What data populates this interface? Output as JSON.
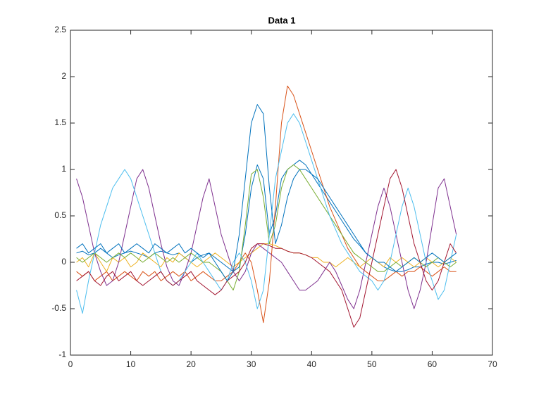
{
  "chart_data": {
    "type": "line",
    "title": "Data 1",
    "x": [
      1,
      2,
      3,
      4,
      5,
      6,
      7,
      8,
      9,
      10,
      11,
      12,
      13,
      14,
      15,
      16,
      17,
      18,
      19,
      20,
      21,
      22,
      23,
      24,
      25,
      26,
      27,
      28,
      29,
      30,
      31,
      32,
      33,
      34,
      35,
      36,
      37,
      38,
      39,
      40,
      41,
      42,
      43,
      44,
      45,
      46,
      47,
      48,
      49,
      50,
      51,
      52,
      53,
      54,
      55,
      56,
      57,
      58,
      59,
      60,
      61,
      62,
      63,
      64
    ],
    "xlim": [
      0,
      70
    ],
    "xticks": [
      0,
      10,
      20,
      30,
      40,
      50,
      60,
      70
    ],
    "ylim": [
      -1,
      2.5
    ],
    "yticks": [
      -1,
      -0.5,
      0,
      0.5,
      1,
      1.5,
      2,
      2.5
    ],
    "box": true,
    "series": [
      {
        "color": "#0072BD",
        "values": [
          0.1,
          0.12,
          0.08,
          0.1,
          0.15,
          0.1,
          0.05,
          0.08,
          0.1,
          0.12,
          0.1,
          0.08,
          0.05,
          0.1,
          0.12,
          0.1,
          0.08,
          0.1,
          0.05,
          0.0,
          0.05,
          0.08,
          0.1,
          0.05,
          0.0,
          -0.05,
          -0.1,
          -0.05,
          0.3,
          0.8,
          1.05,
          0.9,
          0.3,
          0.5,
          0.9,
          1.0,
          1.05,
          1.1,
          1.05,
          0.95,
          0.85,
          0.75,
          0.65,
          0.55,
          0.45,
          0.35,
          0.25,
          0.18,
          0.1,
          0.05,
          0.0,
          -0.05,
          -0.08,
          -0.1,
          -0.1,
          -0.08,
          -0.05,
          -0.05,
          -0.02,
          0.0,
          0.0,
          -0.02,
          0.0,
          0.02
        ]
      },
      {
        "color": "#D95319",
        "values": [
          -0.1,
          -0.15,
          -0.1,
          -0.2,
          -0.15,
          -0.1,
          -0.2,
          -0.15,
          -0.1,
          -0.15,
          -0.2,
          -0.1,
          -0.15,
          -0.1,
          -0.2,
          -0.15,
          -0.1,
          -0.15,
          -0.1,
          -0.2,
          -0.15,
          -0.1,
          -0.15,
          -0.2,
          -0.2,
          -0.15,
          -0.1,
          0.0,
          0.1,
          0.0,
          -0.3,
          -0.65,
          -0.2,
          0.6,
          1.5,
          1.9,
          1.8,
          1.6,
          1.4,
          1.2,
          1.0,
          0.8,
          0.6,
          0.45,
          0.3,
          0.15,
          0.05,
          -0.05,
          -0.1,
          -0.15,
          -0.2,
          -0.2,
          -0.15,
          -0.1,
          -0.15,
          -0.1,
          -0.1,
          -0.05,
          -0.1,
          -0.15,
          -0.1,
          -0.05,
          -0.1,
          -0.1
        ]
      },
      {
        "color": "#EDB120",
        "values": [
          0.0,
          0.05,
          -0.05,
          0.1,
          0.0,
          -0.1,
          0.05,
          0.0,
          0.05,
          -0.05,
          0.0,
          0.1,
          0.05,
          0.0,
          -0.05,
          0.05,
          0.0,
          0.1,
          0.05,
          0.0,
          -0.05,
          0.0,
          0.05,
          0.1,
          0.05,
          0.0,
          -0.05,
          0.0,
          0.05,
          0.1,
          0.15,
          0.2,
          0.2,
          0.18,
          0.15,
          0.12,
          0.1,
          0.1,
          0.08,
          0.05,
          0.05,
          0.0,
          0.0,
          -0.05,
          0.0,
          0.05,
          0.0,
          -0.05,
          0.0,
          0.05,
          0.0,
          -0.05,
          0.05,
          0.0,
          0.05,
          0.0,
          -0.05,
          0.0,
          0.05,
          0.0,
          -0.05,
          0.0,
          0.05,
          0.0
        ]
      },
      {
        "color": "#7E2F8E",
        "values": [
          0.9,
          0.7,
          0.4,
          0.1,
          -0.1,
          -0.25,
          -0.2,
          0.0,
          0.3,
          0.6,
          0.9,
          1.0,
          0.8,
          0.5,
          0.2,
          -0.05,
          -0.2,
          -0.25,
          -0.1,
          0.1,
          0.4,
          0.7,
          0.9,
          0.6,
          0.3,
          0.1,
          -0.1,
          -0.2,
          -0.1,
          0.1,
          0.2,
          0.15,
          0.1,
          0.05,
          0.0,
          -0.1,
          -0.2,
          -0.3,
          -0.3,
          -0.25,
          -0.2,
          -0.1,
          0.0,
          -0.1,
          -0.25,
          -0.4,
          -0.5,
          -0.3,
          0.0,
          0.3,
          0.6,
          0.8,
          0.6,
          0.3,
          0.0,
          -0.3,
          -0.5,
          -0.3,
          0.0,
          0.4,
          0.8,
          0.9,
          0.6,
          0.3
        ]
      },
      {
        "color": "#77AC30",
        "values": [
          0.05,
          0.0,
          0.05,
          0.1,
          0.05,
          0.0,
          0.05,
          0.1,
          0.05,
          0.1,
          0.05,
          0.0,
          0.05,
          0.1,
          0.05,
          0.0,
          0.05,
          0.0,
          0.05,
          0.1,
          0.05,
          0.0,
          0.0,
          -0.05,
          -0.1,
          -0.2,
          -0.3,
          -0.1,
          0.4,
          0.95,
          1.0,
          0.7,
          0.2,
          0.4,
          0.8,
          1.0,
          1.05,
          1.0,
          0.9,
          0.8,
          0.7,
          0.6,
          0.5,
          0.4,
          0.3,
          0.2,
          0.1,
          0.05,
          0.0,
          -0.05,
          -0.1,
          -0.1,
          -0.05,
          0.0,
          -0.05,
          0.0,
          0.05,
          0.0,
          -0.05,
          0.0,
          0.05,
          0.0,
          -0.05,
          0.0
        ]
      },
      {
        "color": "#4DBEEE",
        "values": [
          -0.3,
          -0.55,
          -0.2,
          0.1,
          0.4,
          0.6,
          0.8,
          0.9,
          1.0,
          0.9,
          0.7,
          0.5,
          0.3,
          0.1,
          -0.1,
          -0.2,
          -0.25,
          -0.2,
          -0.1,
          0.0,
          0.1,
          0.0,
          -0.1,
          -0.2,
          -0.3,
          -0.2,
          0.0,
          0.1,
          0.0,
          -0.2,
          -0.5,
          -0.3,
          0.3,
          0.9,
          1.2,
          1.5,
          1.6,
          1.5,
          1.3,
          1.1,
          0.9,
          0.7,
          0.5,
          0.35,
          0.2,
          0.1,
          0.0,
          -0.1,
          -0.15,
          -0.2,
          -0.3,
          -0.2,
          0.0,
          0.3,
          0.6,
          0.8,
          0.6,
          0.3,
          0.0,
          -0.2,
          -0.4,
          -0.3,
          0.0,
          0.3
        ]
      },
      {
        "color": "#A2142F",
        "values": [
          -0.2,
          -0.15,
          -0.1,
          -0.2,
          -0.25,
          -0.15,
          -0.1,
          -0.2,
          -0.15,
          -0.1,
          -0.2,
          -0.25,
          -0.2,
          -0.15,
          -0.1,
          -0.2,
          -0.25,
          -0.2,
          -0.15,
          -0.1,
          -0.2,
          -0.25,
          -0.3,
          -0.35,
          -0.3,
          -0.2,
          -0.15,
          -0.1,
          0.0,
          0.15,
          0.2,
          0.2,
          0.18,
          0.15,
          0.15,
          0.12,
          0.1,
          0.1,
          0.08,
          0.05,
          0.0,
          -0.05,
          -0.1,
          -0.2,
          -0.3,
          -0.5,
          -0.7,
          -0.6,
          -0.3,
          0.0,
          0.3,
          0.6,
          0.9,
          1.0,
          0.8,
          0.5,
          0.2,
          0.0,
          -0.2,
          -0.3,
          -0.2,
          0.0,
          0.2,
          0.1
        ]
      },
      {
        "color": "#0072BD",
        "values": [
          0.15,
          0.2,
          0.1,
          0.15,
          0.2,
          0.1,
          0.15,
          0.2,
          0.1,
          0.15,
          0.2,
          0.15,
          0.1,
          0.2,
          0.15,
          0.1,
          0.15,
          0.2,
          0.1,
          0.15,
          0.1,
          0.05,
          0.1,
          0.0,
          -0.1,
          -0.2,
          -0.1,
          0.3,
          0.9,
          1.5,
          1.7,
          1.6,
          0.8,
          0.2,
          0.4,
          0.7,
          0.9,
          1.0,
          1.0,
          0.95,
          0.9,
          0.8,
          0.7,
          0.6,
          0.5,
          0.4,
          0.3,
          0.2,
          0.1,
          0.05,
          0.0,
          0.0,
          -0.05,
          -0.1,
          -0.05,
          0.0,
          0.05,
          0.0,
          0.05,
          0.1,
          0.05,
          0.0,
          0.05,
          0.1
        ]
      }
    ]
  }
}
